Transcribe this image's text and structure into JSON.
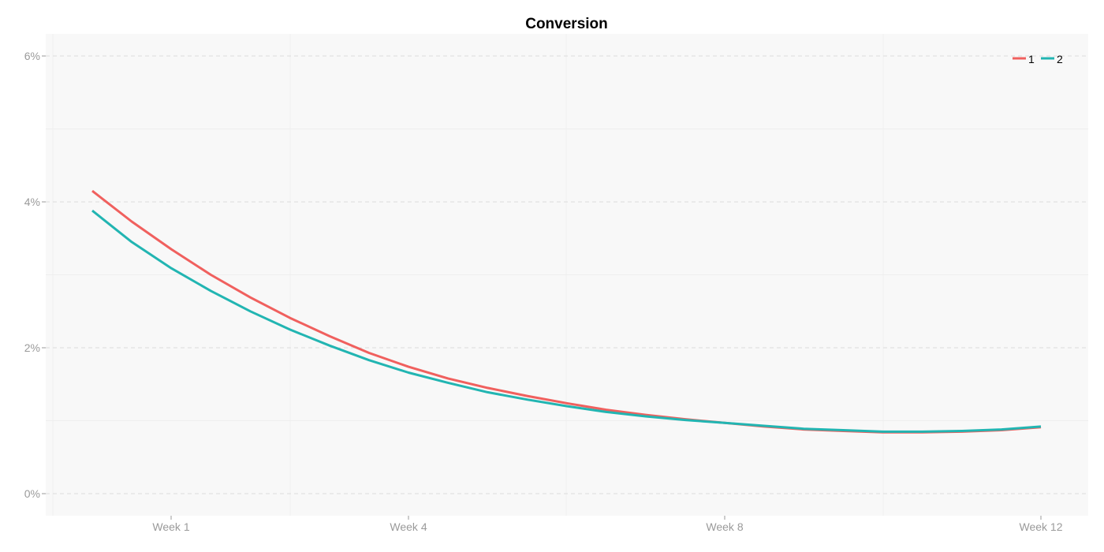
{
  "chart_data": {
    "type": "line",
    "title": "Conversion",
    "xlabel": "",
    "ylabel": "",
    "x_ticks": [
      "Week 1",
      "Week 4",
      "Week 8",
      "Week 12"
    ],
    "y_ticks": [
      "0%",
      "2%",
      "4%",
      "6%"
    ],
    "ylim": [
      0,
      6
    ],
    "grid": true,
    "legend_position": "top-right",
    "x": [
      0.0,
      0.5,
      1.0,
      1.5,
      2.0,
      2.5,
      3.0,
      3.5,
      4.0,
      4.5,
      5.0,
      5.5,
      6.0,
      6.5,
      7.0,
      7.5,
      8.0,
      8.5,
      9.0,
      9.5,
      10.0,
      10.5,
      11.0,
      11.5,
      12.0
    ],
    "series": [
      {
        "name": "1",
        "color": "#f0605e",
        "values": [
          4.15,
          3.73,
          3.35,
          3.0,
          2.69,
          2.41,
          2.16,
          1.93,
          1.74,
          1.58,
          1.45,
          1.34,
          1.24,
          1.15,
          1.08,
          1.02,
          0.97,
          0.92,
          0.88,
          0.86,
          0.84,
          0.84,
          0.85,
          0.87,
          0.91
        ]
      },
      {
        "name": "2",
        "color": "#22b5b2",
        "values": [
          3.88,
          3.45,
          3.09,
          2.78,
          2.5,
          2.25,
          2.03,
          1.83,
          1.66,
          1.52,
          1.39,
          1.29,
          1.2,
          1.12,
          1.06,
          1.01,
          0.97,
          0.93,
          0.89,
          0.87,
          0.85,
          0.85,
          0.86,
          0.88,
          0.92
        ]
      }
    ]
  }
}
